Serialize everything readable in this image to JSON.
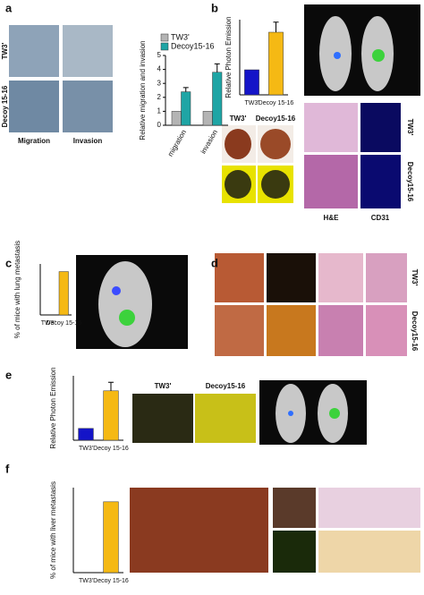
{
  "panels": [
    "a",
    "b",
    "c",
    "d",
    "e",
    "f"
  ],
  "image_labels": {
    "a_rows": [
      "TW3'",
      "Decoy 15-16"
    ],
    "a_cols": [
      "Migration",
      "Invasion"
    ],
    "b_kidney": [
      "TW3'",
      "Decoy15-16"
    ],
    "b_histo_cols": [
      "H&E",
      "CD31"
    ],
    "b_histo_rows": [
      "TW3'",
      "Decoy15-16"
    ],
    "d_rows": [
      "TW3'",
      "Decoy15-16"
    ],
    "e_cols": [
      "TW3'",
      "Decoy15-16"
    ]
  },
  "chart_data": [
    {
      "type": "bar",
      "ylabel": "Relative migration and invasion",
      "categories": [
        "migration",
        "invasion"
      ],
      "series": [
        {
          "name": "TW3'",
          "color": "#b4b4b4",
          "values": [
            1,
            1
          ],
          "errors": [
            null,
            null
          ]
        },
        {
          "name": "Decoy15-16",
          "color": "#1fa5a5",
          "values": [
            2.4,
            3.8
          ],
          "errors": [
            0.3,
            0.6
          ]
        }
      ],
      "ylim": [
        0,
        5
      ],
      "yticks": [
        0,
        1,
        2,
        3,
        4,
        5
      ]
    },
    {
      "type": "bar",
      "ylabel": "Relative Photon Emission",
      "categories": [
        "TW3'",
        "Decoy 15-16"
      ],
      "values": [
        1,
        2.5
      ],
      "errors": [
        null,
        0.4
      ],
      "colors": [
        "#1414c8",
        "#f5b914"
      ],
      "ylim": [
        0,
        3
      ]
    },
    {
      "type": "bar",
      "ylabel": "% of mice with lung metastasis",
      "categories": [
        "TW3'",
        "Decoy 15-16"
      ],
      "values": [
        0,
        34
      ],
      "errors": [
        null,
        null
      ],
      "colors": [
        "#1414c8",
        "#f5b914"
      ],
      "ylim": [
        0,
        40
      ]
    },
    {
      "type": "bar",
      "ylabel": "Relative Photon Emission",
      "categories": [
        "TW3'",
        "Decoy 15-16"
      ],
      "values": [
        1.1,
        4.6
      ],
      "errors": [
        null,
        0.8
      ],
      "colors": [
        "#1414c8",
        "#f5b914"
      ],
      "ylim": [
        0,
        6
      ]
    },
    {
      "type": "bar",
      "ylabel": "% of mice with liver metastasis",
      "categories": [
        "TW3'",
        "Decoy 15-16"
      ],
      "values": [
        0,
        10
      ],
      "errors": [
        null,
        null
      ],
      "colors": [
        "#1414c8",
        "#f5b914"
      ],
      "ylim": [
        0,
        12
      ]
    }
  ]
}
